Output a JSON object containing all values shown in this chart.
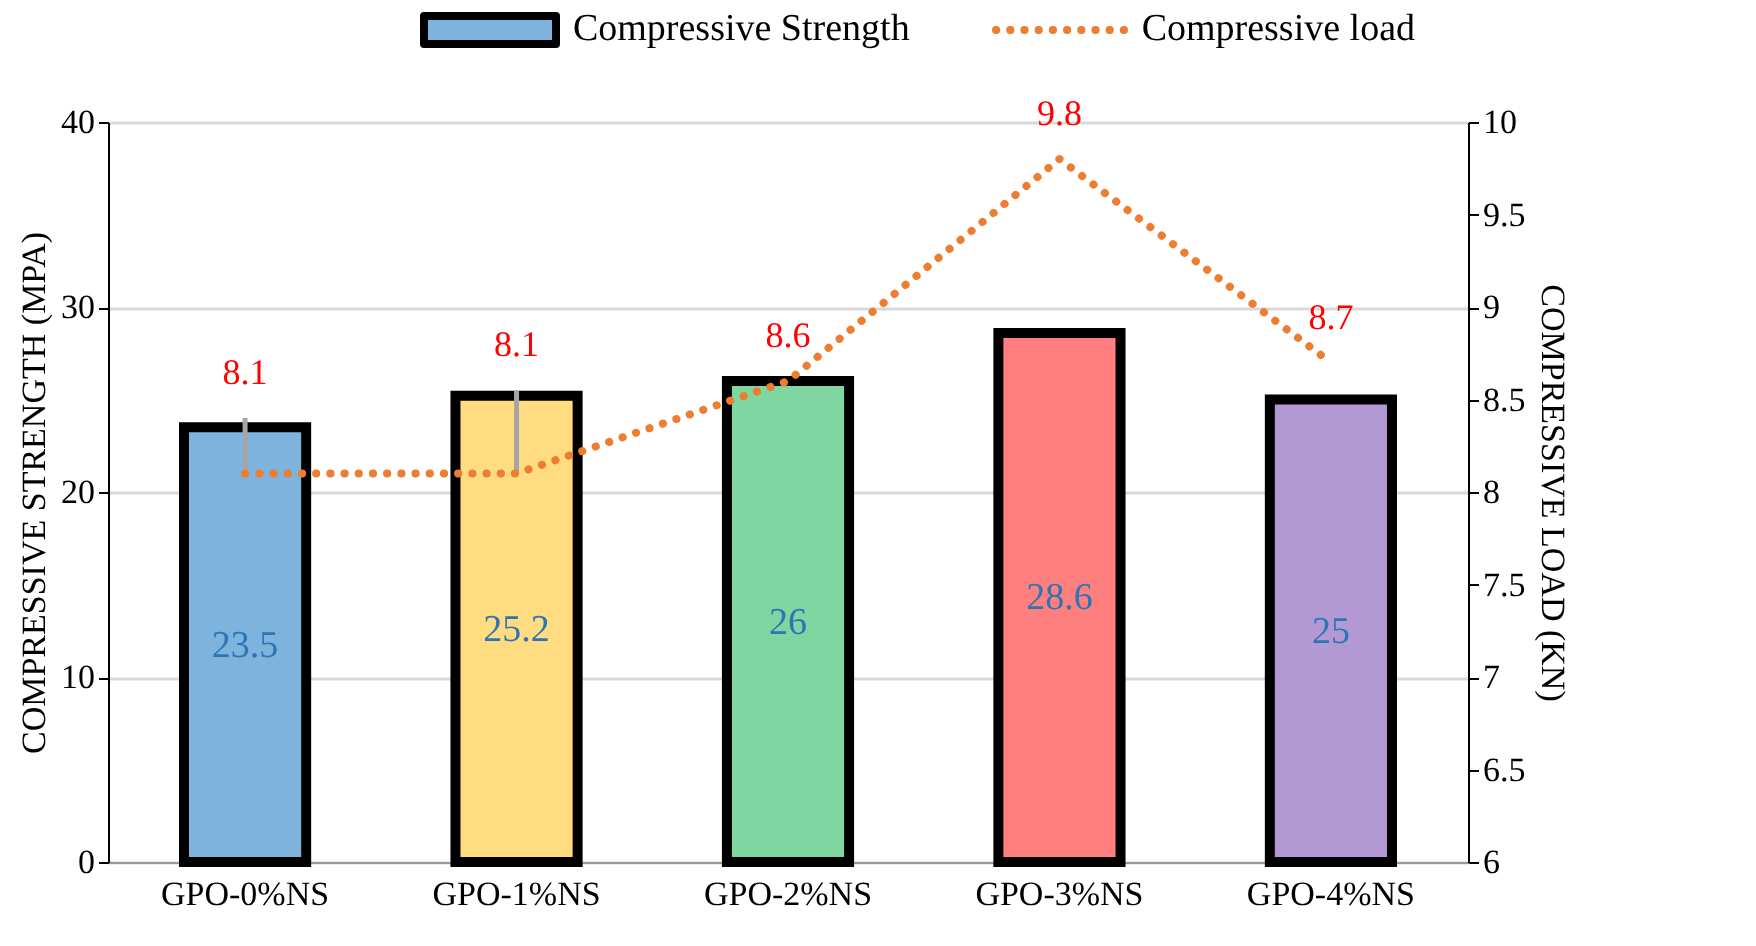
{
  "chart_data": {
    "type": "bar",
    "categories": [
      "GPO-0%NS",
      "GPO-1%NS",
      "GPO-2%NS",
      "GPO-3%NS",
      "GPO-4%NS"
    ],
    "ylabel": "COMPRESSIVE STRENGTH (MPA)",
    "y2label": "COMPRESSIVE LOAD (KN)",
    "ylim": [
      0,
      40
    ],
    "yticks": [
      0,
      10,
      20,
      30,
      40
    ],
    "y2lim": [
      6,
      10
    ],
    "y2ticks": [
      6,
      6.5,
      7,
      7.5,
      8,
      8.5,
      9,
      9.5,
      10
    ],
    "grid": "y",
    "legend": "top",
    "data_labels": true,
    "series": [
      {
        "name": "Compressive Strength",
        "color": "#7eb3dd",
        "colors": [
          "#7eb3dd",
          "#ffdc7f",
          "#7fd6a1",
          "#ff7f7f",
          "#b399d4"
        ],
        "values": [
          23.5,
          25.2,
          26,
          28.6,
          25
        ]
      },
      {
        "name": "Compressive load",
        "type": "line",
        "axis": "y2",
        "color": "#ed7d31",
        "line_style": "dotted",
        "values": [
          8.1,
          8.1,
          8.6,
          9.8,
          8.7
        ],
        "errors": [
          [
            8.1,
            8.4
          ],
          [
            8.1,
            8.55
          ],
          null,
          null,
          null
        ]
      }
    ]
  }
}
